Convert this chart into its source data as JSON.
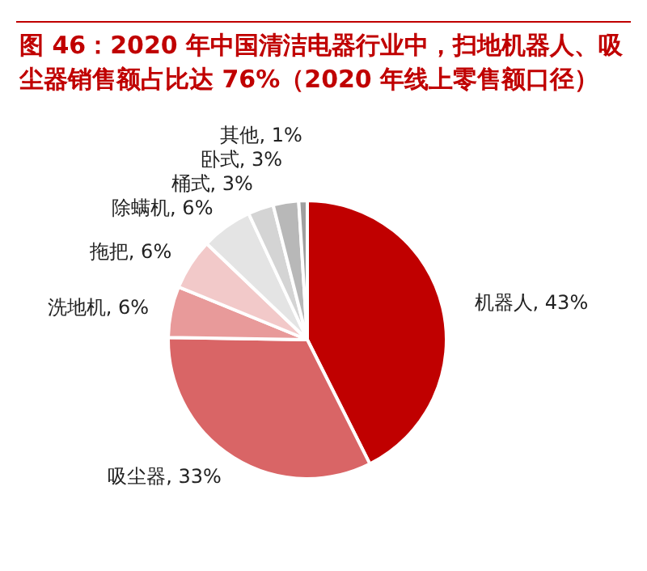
{
  "chart_data": {
    "type": "pie",
    "title": "图 46：2020 年中国清洁电器行业中，扫地机器人、吸尘器销售额占比达 76%（2020 年线上零售额口径）",
    "categories": [
      "机器人",
      "吸尘器",
      "洗地机",
      "拖把",
      "除螨机",
      "桶式",
      "卧式",
      "其他"
    ],
    "values": [
      43,
      33,
      6,
      6,
      6,
      3,
      3,
      1
    ],
    "value_labels": [
      "43%",
      "33%",
      "6%",
      "6%",
      "6%",
      "3%",
      "3%",
      "1%"
    ],
    "colors": [
      "#c00000",
      "#d96566",
      "#e89a9a",
      "#f2c9c9",
      "#e4e4e4",
      "#d4d4d4",
      "#b8b8b8",
      "#a0a0a0"
    ]
  }
}
